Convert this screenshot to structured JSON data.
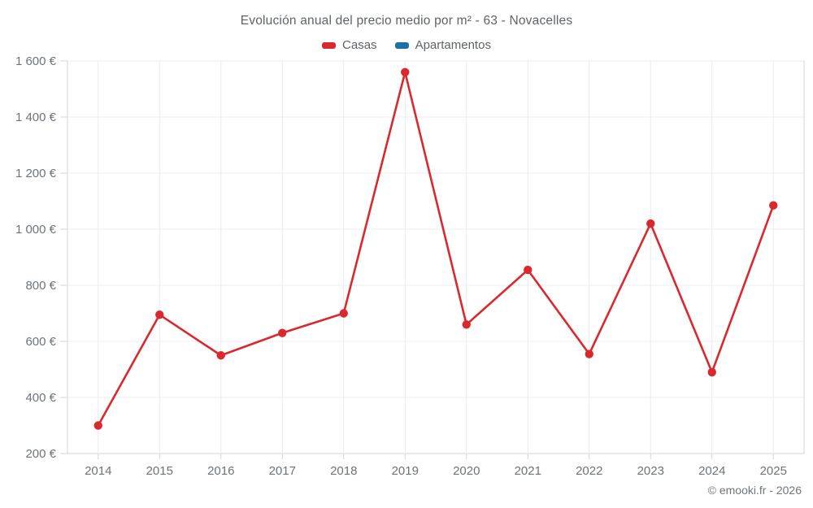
{
  "footer": "© emooki.fr - 2026",
  "chart_data": {
    "type": "line",
    "title": "Evolución anual del precio medio por m² - 63 - Novacelles",
    "categories": [
      "2014",
      "2015",
      "2016",
      "2017",
      "2018",
      "2019",
      "2020",
      "2021",
      "2022",
      "2023",
      "2024",
      "2025"
    ],
    "series": [
      {
        "name": "Casas",
        "color": "#da292e",
        "values": [
          300,
          695,
          550,
          630,
          700,
          1560,
          660,
          855,
          555,
          1020,
          490,
          1085
        ]
      },
      {
        "name": "Apartamentos",
        "color": "#1a6fa5",
        "values": []
      }
    ],
    "xlabel": "",
    "ylabel": "",
    "ylim": [
      200,
      1600
    ],
    "ytick_step": 200,
    "ytick_labels": [
      "200 €",
      "400 €",
      "600 €",
      "800 €",
      "1 000 €",
      "1 200 €",
      "1 400 €",
      "1 600 €"
    ],
    "grid": true,
    "legend_position": "top",
    "colors": {
      "gridline": "#ececec",
      "frame": "#d6d6d6",
      "tick_text": "#6d737b"
    }
  }
}
